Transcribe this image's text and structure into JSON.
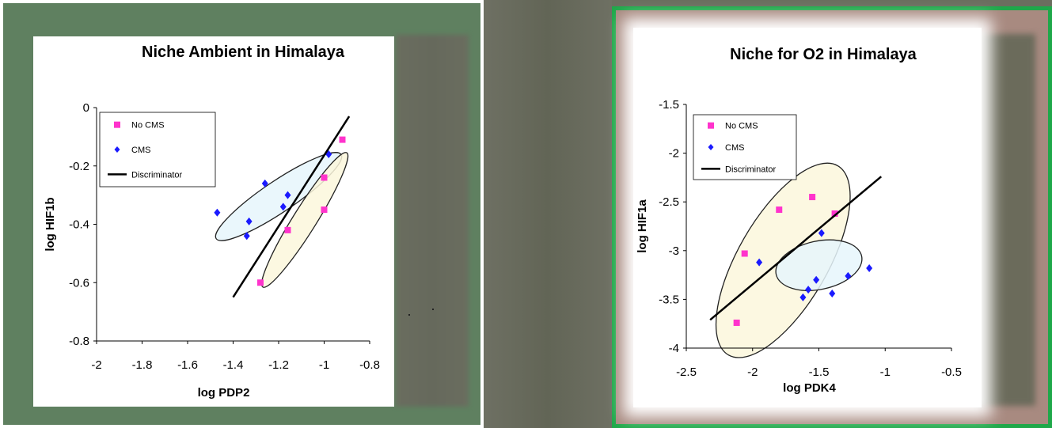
{
  "colors": {
    "no_cms": "#ff33cc",
    "cms": "#1a1aff",
    "discriminator": "#000000",
    "ellipse_cms_fill": "#e6f6fb",
    "ellipse_nocms_fill": "#fbf7dc"
  },
  "chart_data": [
    {
      "type": "scatter",
      "title": "Niche Ambient in Himalaya",
      "xlabel": "log PDP2",
      "ylabel": "log HIF1b",
      "xlim": [
        -2,
        -0.8
      ],
      "ylim": [
        -0.8,
        0
      ],
      "xticks": [
        "-2",
        "-1.8",
        "-1.6",
        "-1.4",
        "-1.2",
        "-1",
        "-0.8"
      ],
      "yticks": [
        "0",
        "-0.2",
        "-0.4",
        "-0.6",
        "-0.8"
      ],
      "legend": [
        "No CMS",
        "CMS",
        "Discriminator"
      ],
      "legend_position": "top-left",
      "grid": false,
      "series": [
        {
          "name": "No CMS",
          "marker": "square",
          "points": [
            [
              -0.92,
              -0.11
            ],
            [
              -1.0,
              -0.24
            ],
            [
              -1.0,
              -0.35
            ],
            [
              -1.16,
              -0.42
            ],
            [
              -1.28,
              -0.6
            ]
          ]
        },
        {
          "name": "CMS",
          "marker": "diamond",
          "points": [
            [
              -1.47,
              -0.36
            ],
            [
              -1.34,
              -0.44
            ],
            [
              -1.33,
              -0.39
            ],
            [
              -1.26,
              -0.26
            ],
            [
              -1.18,
              -0.34
            ],
            [
              -1.16,
              -0.3
            ],
            [
              -0.98,
              -0.16
            ]
          ]
        },
        {
          "name": "Discriminator",
          "marker": "line",
          "points": [
            [
              -1.4,
              -0.65
            ],
            [
              -0.89,
              -0.03
            ]
          ]
        }
      ],
      "ellipses": [
        {
          "group": "CMS",
          "center": [
            -1.2,
            -0.305
          ],
          "rx": 0.29,
          "ry": 0.06,
          "angle": -34
        },
        {
          "group": "No CMS",
          "center": [
            -1.085,
            -0.385
          ],
          "rx": 0.305,
          "ry": 0.045,
          "angle": -58
        }
      ]
    },
    {
      "type": "scatter",
      "title": "Niche for O2 in Himalaya",
      "xlabel": "log PDK4",
      "ylabel": "log HIF1a",
      "xlim": [
        -2.5,
        -0.5
      ],
      "ylim": [
        -4,
        -1.5
      ],
      "xticks": [
        "-2.5",
        "-2",
        "-1.5",
        "-1",
        "-0.5"
      ],
      "yticks": [
        "-1.5",
        "-2",
        "-2.5",
        "-3",
        "-3.5",
        "-4"
      ],
      "legend": [
        "No CMS",
        "CMS",
        "Discriminator"
      ],
      "legend_position": "top-left",
      "grid": false,
      "series": [
        {
          "name": "No CMS",
          "marker": "square",
          "points": [
            [
              -2.12,
              -3.74
            ],
            [
              -2.06,
              -3.03
            ],
            [
              -1.8,
              -2.58
            ],
            [
              -1.55,
              -2.45
            ],
            [
              -1.38,
              -2.62
            ]
          ]
        },
        {
          "name": "CMS",
          "marker": "diamond",
          "points": [
            [
              -1.95,
              -3.12
            ],
            [
              -1.62,
              -3.48
            ],
            [
              -1.58,
              -3.4
            ],
            [
              -1.52,
              -3.3
            ],
            [
              -1.48,
              -2.82
            ],
            [
              -1.4,
              -3.44
            ],
            [
              -1.28,
              -3.26
            ],
            [
              -1.12,
              -3.18
            ]
          ]
        },
        {
          "name": "Discriminator",
          "marker": "line",
          "points": [
            [
              -2.32,
              -3.71
            ],
            [
              -1.03,
              -2.24
            ]
          ]
        }
      ],
      "ellipses": [
        {
          "group": "No CMS",
          "center": [
            -1.77,
            -3.1
          ],
          "rx": 0.95,
          "ry": 0.39,
          "angle": -60
        },
        {
          "group": "CMS",
          "center": [
            -1.5,
            -3.15
          ],
          "rx": 0.38,
          "ry": 0.21,
          "angle": -12
        }
      ]
    }
  ]
}
